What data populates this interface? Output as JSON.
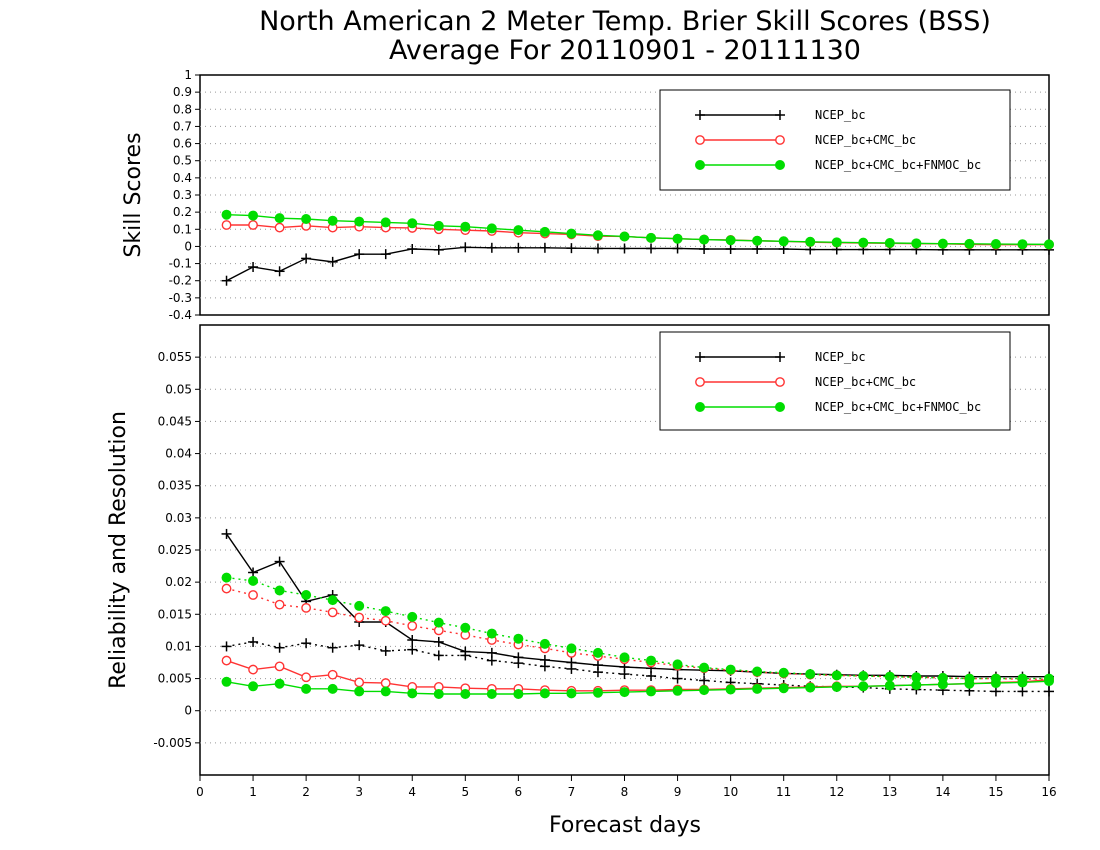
{
  "chart_data": {
    "type": "line",
    "title": "North American 2 Meter Temp. Brier Skill Scores (BSS)",
    "subtitle": "Average For 20110901 - 20111130",
    "xlabel": "Forecast days",
    "xlim": [
      0,
      16
    ],
    "xticks": [
      "0",
      "1",
      "2",
      "3",
      "4",
      "5",
      "6",
      "7",
      "8",
      "9",
      "10",
      "11",
      "12",
      "13",
      "14",
      "15",
      "16"
    ],
    "x": [
      0.5,
      1,
      1.5,
      2,
      2.5,
      3,
      3.5,
      4,
      4.5,
      5,
      5.5,
      6,
      6.5,
      7,
      7.5,
      8,
      8.5,
      9,
      9.5,
      10,
      10.5,
      11,
      11.5,
      12,
      12.5,
      13,
      13.5,
      14,
      14.5,
      15,
      15.5,
      16
    ],
    "legend_labels": [
      "NCEP_bc",
      "NCEP_bc+CMC_bc",
      "NCEP_bc+CMC_bc+FNMOC_bc"
    ],
    "colors": {
      "ncep": "#000000",
      "cmc": "#ff3333",
      "fnmoc": "#00dd00",
      "grid": "#999999"
    },
    "panels": [
      {
        "ylabel": "Skill Scores",
        "ylim": [
          -0.4,
          1
        ],
        "yticks": [
          "-0.4",
          "-0.3",
          "-0.2",
          "-0.1",
          "0",
          "0.1",
          "0.2",
          "0.3",
          "0.4",
          "0.5",
          "0.6",
          "0.7",
          "0.8",
          "0.9",
          "1"
        ],
        "grid": true,
        "legend_position": "top-right",
        "series": [
          {
            "name": "NCEP_bc",
            "style": "solid",
            "marker": "plus",
            "values": [
              -0.2,
              -0.12,
              -0.145,
              -0.07,
              -0.09,
              -0.045,
              -0.045,
              -0.015,
              -0.02,
              -0.005,
              -0.008,
              -0.008,
              -0.008,
              -0.01,
              -0.012,
              -0.012,
              -0.012,
              -0.012,
              -0.015,
              -0.015,
              -0.015,
              -0.015,
              -0.018,
              -0.018,
              -0.018,
              -0.018,
              -0.018,
              -0.02,
              -0.02,
              -0.02,
              -0.02,
              -0.02
            ]
          },
          {
            "name": "NCEP_bc+CMC_bc",
            "style": "solid",
            "marker": "open-circle",
            "values": [
              0.125,
              0.125,
              0.11,
              0.12,
              0.11,
              0.115,
              0.11,
              0.108,
              0.1,
              0.095,
              0.09,
              0.08,
              0.075,
              0.07,
              0.06,
              0.058,
              0.05,
              0.045,
              0.04,
              0.038,
              0.033,
              0.03,
              0.025,
              0.022,
              0.02,
              0.018,
              0.016,
              0.015,
              0.012,
              0.01,
              0.01,
              0.01
            ]
          },
          {
            "name": "NCEP_bc+CMC_bc+FNMOC_bc",
            "style": "solid",
            "marker": "filled-circle",
            "values": [
              0.185,
              0.18,
              0.165,
              0.16,
              0.15,
              0.145,
              0.14,
              0.135,
              0.12,
              0.115,
              0.105,
              0.095,
              0.085,
              0.075,
              0.065,
              0.058,
              0.05,
              0.045,
              0.04,
              0.036,
              0.033,
              0.03,
              0.027,
              0.024,
              0.022,
              0.02,
              0.018,
              0.016,
              0.015,
              0.014,
              0.013,
              0.012
            ]
          }
        ]
      },
      {
        "ylabel": "Reliability and Resolution",
        "ylim": [
          -0.01,
          0.06
        ],
        "yticks": [
          "-0.005",
          "0",
          "0.005",
          "0.01",
          "0.015",
          "0.02",
          "0.025",
          "0.03",
          "0.035",
          "0.04",
          "0.045",
          "0.05",
          "0.055"
        ],
        "grid": true,
        "legend_position": "top-right",
        "series": [
          {
            "name": "NCEP_bc",
            "style": "solid",
            "marker": "plus",
            "values": [
              0.0275,
              0.0215,
              0.0232,
              0.017,
              0.018,
              0.0138,
              0.0138,
              0.011,
              0.0107,
              0.0092,
              0.009,
              0.0083,
              0.0079,
              0.0075,
              0.0071,
              0.0068,
              0.0066,
              0.0064,
              0.0063,
              0.0062,
              0.006,
              0.0058,
              0.0057,
              0.0056,
              0.0055,
              0.0055,
              0.0054,
              0.0054,
              0.0053,
              0.0053,
              0.0053,
              0.0053
            ]
          },
          {
            "name": "NCEP_bc",
            "style": "dotted",
            "marker": "plus",
            "values": [
              0.01,
              0.0107,
              0.0098,
              0.0105,
              0.0098,
              0.0102,
              0.0093,
              0.0095,
              0.0086,
              0.0086,
              0.0078,
              0.0074,
              0.0069,
              0.0065,
              0.006,
              0.0057,
              0.0054,
              0.005,
              0.0047,
              0.0044,
              0.0042,
              0.004,
              0.0038,
              0.0037,
              0.0036,
              0.0034,
              0.0033,
              0.0032,
              0.0031,
              0.003,
              0.003,
              0.003
            ]
          },
          {
            "name": "NCEP_bc+CMC_bc",
            "style": "solid",
            "marker": "open-circle",
            "values": [
              0.0078,
              0.0064,
              0.0069,
              0.0052,
              0.0056,
              0.0044,
              0.0043,
              0.0037,
              0.0037,
              0.0035,
              0.0034,
              0.0034,
              0.0032,
              0.0031,
              0.0031,
              0.0032,
              0.0032,
              0.0033,
              0.0033,
              0.0034,
              0.0035,
              0.0036,
              0.0037,
              0.0038,
              0.0038,
              0.0039,
              0.004,
              0.0041,
              0.0042,
              0.0044,
              0.0045,
              0.0048
            ]
          },
          {
            "name": "NCEP_bc+CMC_bc",
            "style": "dotted",
            "marker": "open-circle",
            "values": [
              0.019,
              0.018,
              0.0165,
              0.016,
              0.0153,
              0.0145,
              0.014,
              0.0132,
              0.0125,
              0.0118,
              0.011,
              0.0103,
              0.0097,
              0.009,
              0.0085,
              0.008,
              0.0075,
              0.007,
              0.0066,
              0.0063,
              0.006,
              0.0058,
              0.0056,
              0.0055,
              0.0054,
              0.0053,
              0.0052,
              0.0051,
              0.005,
              0.005,
              0.0049,
              0.0049
            ]
          },
          {
            "name": "NCEP_bc+CMC_bc+FNMOC_bc",
            "style": "solid",
            "marker": "filled-circle",
            "values": [
              0.0045,
              0.0038,
              0.0042,
              0.0034,
              0.0034,
              0.003,
              0.003,
              0.0027,
              0.0026,
              0.0026,
              0.0026,
              0.0026,
              0.0027,
              0.0027,
              0.0028,
              0.0029,
              0.003,
              0.0031,
              0.0032,
              0.0033,
              0.0034,
              0.0035,
              0.0036,
              0.0037,
              0.0038,
              0.0039,
              0.004,
              0.0041,
              0.0042,
              0.0043,
              0.0044,
              0.0046
            ]
          },
          {
            "name": "NCEP_bc+CMC_bc+FNMOC_bc",
            "style": "dotted",
            "marker": "filled-circle",
            "values": [
              0.0207,
              0.0202,
              0.0187,
              0.018,
              0.0172,
              0.0163,
              0.0155,
              0.0146,
              0.0137,
              0.0129,
              0.012,
              0.0112,
              0.0104,
              0.0097,
              0.009,
              0.0083,
              0.0078,
              0.0072,
              0.0067,
              0.0064,
              0.0061,
              0.0059,
              0.0057,
              0.0055,
              0.0054,
              0.0053,
              0.0052,
              0.0051,
              0.005,
              0.005,
              0.005,
              0.005
            ]
          }
        ]
      }
    ]
  }
}
